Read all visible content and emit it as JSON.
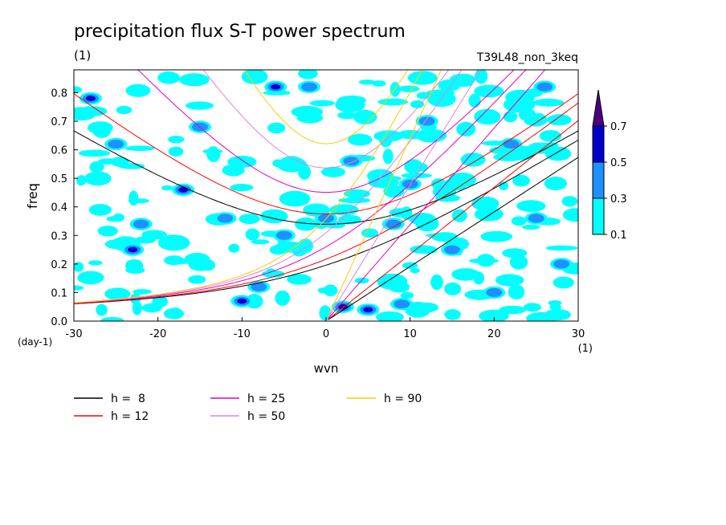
{
  "chart_data": {
    "type": "heatmap",
    "title": "precipitation flux S-T power spectrum",
    "subtitle_left": "(1)",
    "subtitle_right": "T39L48_non_3keq",
    "xlabel": "wvn",
    "ylabel": "freq",
    "x_unit": "(1)",
    "y_unit": "(day-1)",
    "xlim": [
      -30,
      30
    ],
    "ylim": [
      0,
      0.88
    ],
    "xticks": [
      -30,
      -20,
      -10,
      0,
      10,
      20,
      30
    ],
    "xtick_labels": [
      "-30",
      "-20",
      "-10",
      "0",
      "10",
      "20",
      "30"
    ],
    "yticks": [
      0,
      0.1,
      0.2,
      0.3,
      0.4,
      0.5,
      0.6,
      0.7,
      0.8
    ],
    "ytick_labels": [
      "0.0",
      "0.1",
      "0.2",
      "0.3",
      "0.4",
      "0.5",
      "0.6",
      "0.7",
      "0.8"
    ],
    "colorbar": {
      "levels": [
        0.1,
        0.3,
        0.5,
        0.7
      ],
      "level_labels": [
        "0.1",
        "0.3",
        "0.5",
        "0.7"
      ],
      "colors": [
        "#00ffff",
        "#1e90ff",
        "#0000cd",
        "#4b0082"
      ]
    },
    "shaded_blobs": [
      {
        "x": -28,
        "y": 0.78,
        "level": 2
      },
      {
        "x": -25,
        "y": 0.62,
        "level": 1
      },
      {
        "x": -17,
        "y": 0.46,
        "level": 2
      },
      {
        "x": -15,
        "y": 0.68,
        "level": 1
      },
      {
        "x": -22,
        "y": 0.34,
        "level": 1
      },
      {
        "x": -23,
        "y": 0.25,
        "level": 2
      },
      {
        "x": -12,
        "y": 0.36,
        "level": 1
      },
      {
        "x": -10,
        "y": 0.07,
        "level": 2
      },
      {
        "x": -5,
        "y": 0.3,
        "level": 1
      },
      {
        "x": -6,
        "y": 0.82,
        "level": 2
      },
      {
        "x": 0,
        "y": 0.36,
        "level": 1
      },
      {
        "x": 2,
        "y": 0.05,
        "level": 3
      },
      {
        "x": 5,
        "y": 0.04,
        "level": 2
      },
      {
        "x": 3,
        "y": 0.56,
        "level": 1
      },
      {
        "x": 8,
        "y": 0.34,
        "level": 1
      },
      {
        "x": 10,
        "y": 0.48,
        "level": 1
      },
      {
        "x": 12,
        "y": 0.7,
        "level": 1
      },
      {
        "x": 15,
        "y": 0.25,
        "level": 1
      },
      {
        "x": 20,
        "y": 0.1,
        "level": 1
      },
      {
        "x": 22,
        "y": 0.62,
        "level": 1
      },
      {
        "x": 25,
        "y": 0.36,
        "level": 1
      },
      {
        "x": 26,
        "y": 0.82,
        "level": 1
      },
      {
        "x": 28,
        "y": 0.2,
        "level": 1
      },
      {
        "x": -2,
        "y": 0.82,
        "level": 1
      },
      {
        "x": -8,
        "y": 0.12,
        "level": 1
      },
      {
        "x": 9,
        "y": 0.06,
        "level": 1
      }
    ],
    "series": [
      {
        "name": "h =  8",
        "equivalent_depth_m": 8,
        "color": "#000000"
      },
      {
        "name": "h = 12",
        "equivalent_depth_m": 12,
        "color": "#ff0000"
      },
      {
        "name": "h = 25",
        "equivalent_depth_m": 25,
        "color": "#e000c0"
      },
      {
        "name": "h = 50",
        "equivalent_depth_m": 50,
        "color": "#e080e0"
      },
      {
        "name": "h = 90",
        "equivalent_depth_m": 90,
        "color": "#ffcc00"
      }
    ],
    "legend_position": "bottom-left"
  }
}
